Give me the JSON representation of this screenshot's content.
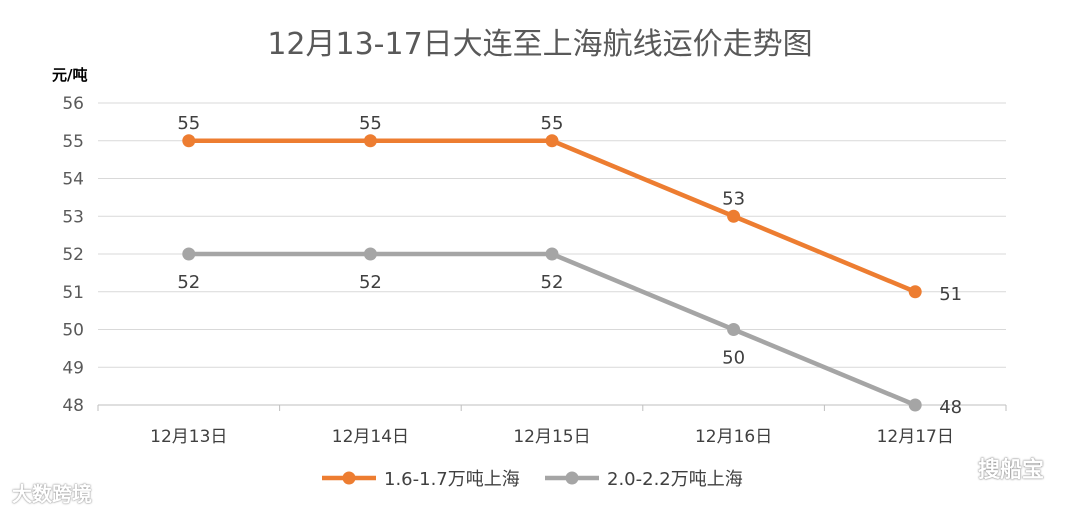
{
  "chart_data": {
    "type": "line",
    "title": "12月13-17日大连至上海航线运价走势图",
    "ylabel": "元/吨",
    "xlabel": "",
    "categories": [
      "12月13日",
      "12月14日",
      "12月15日",
      "12月16日",
      "12月17日"
    ],
    "yticks": [
      48,
      49,
      50,
      51,
      52,
      53,
      54,
      55,
      56
    ],
    "ylim": [
      48,
      56
    ],
    "grid": true,
    "legend": "bottom",
    "series": [
      {
        "name": "1.6-1.7万吨上海",
        "values": [
          55,
          55,
          55,
          53,
          51
        ],
        "color": "#ed7d31"
      },
      {
        "name": "2.0-2.2万吨上海",
        "values": [
          52,
          52,
          52,
          50,
          48
        ],
        "color": "#a5a5a5"
      }
    ]
  },
  "watermarks": {
    "left": "大数跨境",
    "right": "搜船宝"
  }
}
